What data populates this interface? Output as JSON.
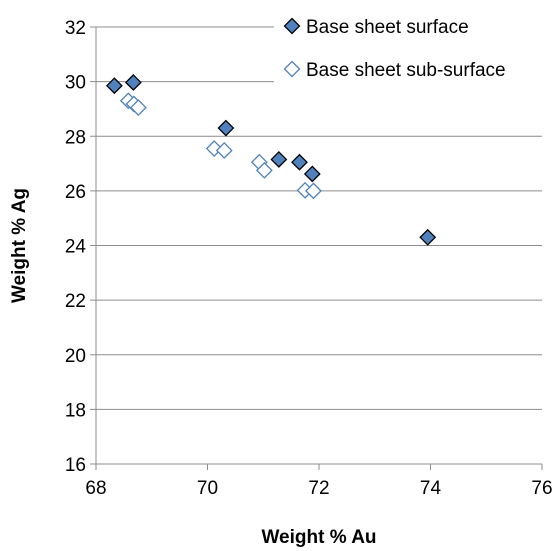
{
  "chart_data": {
    "type": "scatter",
    "title": "",
    "xlabel": "Weight % Au",
    "ylabel": "Weight % Ag",
    "xlim": [
      68,
      76
    ],
    "ylim": [
      16,
      32
    ],
    "xticks": [
      68,
      70,
      72,
      74,
      76
    ],
    "yticks": [
      16,
      18,
      20,
      22,
      24,
      26,
      28,
      30,
      32
    ],
    "grid": "horizontal major gridlines",
    "legend_position": "top-right",
    "series": [
      {
        "name": "Base sheet surface",
        "marker": "diamond-filled",
        "fill_color": "#4F81BD",
        "edge_color": "#000000",
        "points": [
          {
            "x": 68.33,
            "y": 29.85
          },
          {
            "x": 68.67,
            "y": 29.97
          },
          {
            "x": 70.33,
            "y": 28.3
          },
          {
            "x": 71.28,
            "y": 27.15
          },
          {
            "x": 71.65,
            "y": 27.05
          },
          {
            "x": 71.88,
            "y": 26.62
          },
          {
            "x": 73.95,
            "y": 24.3
          }
        ]
      },
      {
        "name": "Base sheet sub-surface",
        "marker": "diamond-open",
        "fill_color": "#FFFFFF",
        "edge_color": "#4F81BD",
        "points": [
          {
            "x": 68.58,
            "y": 29.3
          },
          {
            "x": 68.68,
            "y": 29.18
          },
          {
            "x": 68.76,
            "y": 29.05
          },
          {
            "x": 70.12,
            "y": 27.55
          },
          {
            "x": 70.3,
            "y": 27.48
          },
          {
            "x": 70.93,
            "y": 27.05
          },
          {
            "x": 71.02,
            "y": 26.75
          },
          {
            "x": 71.75,
            "y": 26.02
          },
          {
            "x": 71.9,
            "y": 26.0
          }
        ]
      }
    ]
  },
  "colors": {
    "gridline": "#8C8C8C",
    "axis": "#8C8C8C",
    "surface_fill": "#4F81BD",
    "surface_edge": "#000000",
    "subsurface_edge": "#4F81BD"
  }
}
